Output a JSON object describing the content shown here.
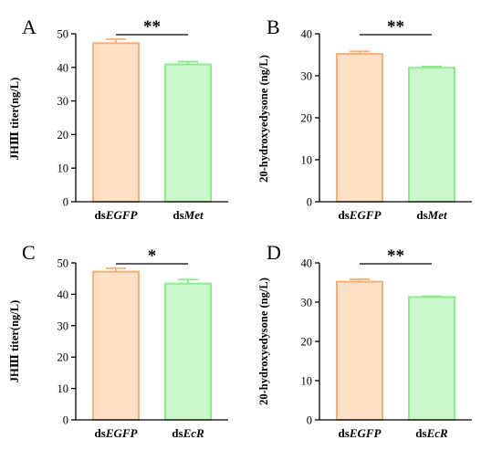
{
  "chart_data": [
    {
      "type": "bar",
      "panel": "A",
      "categories": [
        {
          "prefix": "ds",
          "gene": "EGFP"
        },
        {
          "prefix": "ds",
          "gene": "Met"
        }
      ],
      "values": [
        47.2,
        40.9
      ],
      "errors": [
        1.2,
        0.8
      ],
      "ylabel": "JHⅢ titer(ng/L)",
      "ylim": [
        0,
        50
      ],
      "yticks": [
        0,
        10,
        20,
        30,
        40,
        50
      ],
      "significance": "**",
      "bar_fill": [
        "#fde0c6",
        "#c9f7c9"
      ],
      "bar_stroke": [
        "#f4b078",
        "#8fea8f"
      ]
    },
    {
      "type": "bar",
      "panel": "B",
      "categories": [
        {
          "prefix": "ds",
          "gene": "EGFP"
        },
        {
          "prefix": "ds",
          "gene": "Met"
        }
      ],
      "values": [
        35.2,
        31.9
      ],
      "errors": [
        0.6,
        0.3
      ],
      "ylabel": "20-hydroxyedysone (ng/L)",
      "ylim": [
        0,
        40
      ],
      "yticks": [
        0,
        10,
        20,
        30,
        40
      ],
      "significance": "**",
      "bar_fill": [
        "#fde0c6",
        "#c9f7c9"
      ],
      "bar_stroke": [
        "#f4b078",
        "#8fea8f"
      ]
    },
    {
      "type": "bar",
      "panel": "C",
      "categories": [
        {
          "prefix": "ds",
          "gene": "EGFP"
        },
        {
          "prefix": "ds",
          "gene": "EcR"
        }
      ],
      "values": [
        47.2,
        43.4
      ],
      "errors": [
        1.1,
        1.3
      ],
      "ylabel": "JHⅢ titer(ng/L)",
      "ylim": [
        0,
        50
      ],
      "yticks": [
        0,
        10,
        20,
        30,
        40,
        50
      ],
      "significance": "*",
      "bar_fill": [
        "#fde0c6",
        "#c9f7c9"
      ],
      "bar_stroke": [
        "#f4b078",
        "#8fea8f"
      ]
    },
    {
      "type": "bar",
      "panel": "D",
      "categories": [
        {
          "prefix": "ds",
          "gene": "EGFP"
        },
        {
          "prefix": "ds",
          "gene": "EcR"
        }
      ],
      "values": [
        35.2,
        31.3
      ],
      "errors": [
        0.6,
        0.2
      ],
      "ylabel": "20-hydroxyedysone (ng/L)",
      "ylim": [
        0,
        40
      ],
      "yticks": [
        0,
        10,
        20,
        30,
        40
      ],
      "significance": "**",
      "bar_fill": [
        "#fde0c6",
        "#c9f7c9"
      ],
      "bar_stroke": [
        "#f4b078",
        "#8fea8f"
      ]
    }
  ]
}
